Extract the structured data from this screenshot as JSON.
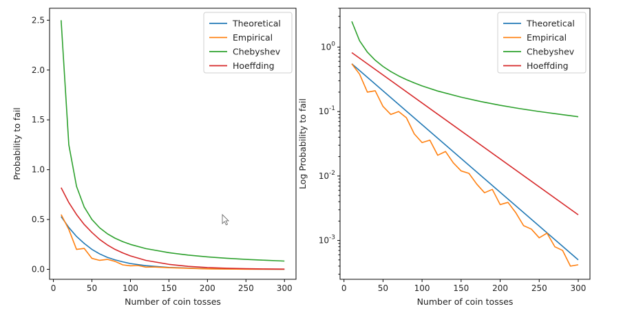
{
  "chart_data": [
    {
      "type": "line",
      "title": "",
      "xlabel": "Number of coin tosses",
      "ylabel": "Probability to fail",
      "yscale": "linear",
      "xlim": [
        -5,
        315
      ],
      "ylim": [
        -0.1,
        2.62
      ],
      "xticks": [
        0,
        50,
        100,
        150,
        200,
        250,
        300
      ],
      "xtick_labels": [
        "0",
        "50",
        "100",
        "150",
        "200",
        "250",
        "300"
      ],
      "yticks": [
        0.0,
        0.5,
        1.0,
        1.5,
        2.0,
        2.5
      ],
      "ytick_labels": [
        "0.0",
        "0.5",
        "1.0",
        "1.5",
        "2.0",
        "2.5"
      ],
      "grid": false,
      "legend_position": "top-right",
      "series": [
        {
          "name": "Theoretical",
          "color": "#1f77b4",
          "x": [
            10,
            20,
            30,
            40,
            50,
            60,
            70,
            80,
            90,
            100,
            120,
            150,
            200,
            250,
            300
          ],
          "y": [
            0.53,
            0.42,
            0.33,
            0.26,
            0.2,
            0.155,
            0.12,
            0.095,
            0.075,
            0.058,
            0.037,
            0.019,
            0.006,
            0.002,
            0.0005
          ]
        },
        {
          "name": "Empirical",
          "color": "#ff7f0e",
          "x": [
            10,
            20,
            30,
            40,
            50,
            60,
            70,
            80,
            90,
            100,
            110,
            120,
            130,
            150,
            200,
            250,
            300
          ],
          "y": [
            0.55,
            0.4,
            0.2,
            0.21,
            0.11,
            0.09,
            0.1,
            0.08,
            0.045,
            0.035,
            0.038,
            0.022,
            0.024,
            0.016,
            0.005,
            0.0015,
            0.0004
          ]
        },
        {
          "name": "Chebyshev",
          "color": "#2ca02c",
          "x": [
            10,
            20,
            30,
            40,
            50,
            60,
            70,
            80,
            90,
            100,
            120,
            150,
            175,
            200,
            225,
            250,
            275,
            300
          ],
          "y": [
            2.5,
            1.25,
            0.833,
            0.625,
            0.5,
            0.417,
            0.357,
            0.3125,
            0.278,
            0.25,
            0.208,
            0.167,
            0.143,
            0.125,
            0.111,
            0.1,
            0.091,
            0.083
          ]
        },
        {
          "name": "Hoeffding",
          "color": "#d62728",
          "x": [
            10,
            20,
            30,
            40,
            50,
            60,
            70,
            80,
            90,
            100,
            120,
            150,
            175,
            200,
            225,
            250,
            275,
            300
          ],
          "y": [
            0.82,
            0.67,
            0.55,
            0.45,
            0.37,
            0.3,
            0.245,
            0.2,
            0.165,
            0.135,
            0.09,
            0.05,
            0.03,
            0.018,
            0.011,
            0.0067,
            0.004,
            0.0025
          ]
        }
      ]
    },
    {
      "type": "line",
      "title": "",
      "xlabel": "Number of coin tosses",
      "ylabel": "Log Probability to fail",
      "yscale": "log",
      "xlim": [
        -5,
        315
      ],
      "ylim": [
        0.00025,
        4.0
      ],
      "xticks": [
        0,
        50,
        100,
        150,
        200,
        250,
        300
      ],
      "xtick_labels": [
        "0",
        "50",
        "100",
        "150",
        "200",
        "250",
        "300"
      ],
      "yticks": [
        0.001,
        0.01,
        0.1,
        1
      ],
      "ytick_labels": [
        [
          "10",
          "-3"
        ],
        [
          "10",
          "-2"
        ],
        [
          "10",
          "-1"
        ],
        [
          "10",
          "0"
        ]
      ],
      "grid": false,
      "legend_position": "top-right",
      "series": [
        {
          "name": "Theoretical",
          "color": "#1f77b4",
          "x": [
            10,
            300
          ],
          "y": [
            0.55,
            0.0005
          ]
        },
        {
          "name": "Empirical",
          "color": "#ff7f0e",
          "x": [
            10,
            20,
            30,
            40,
            50,
            60,
            70,
            80,
            90,
            100,
            110,
            120,
            130,
            140,
            150,
            160,
            170,
            180,
            190,
            200,
            210,
            220,
            230,
            240,
            250,
            260,
            270,
            280,
            290,
            300
          ],
          "y": [
            0.55,
            0.38,
            0.2,
            0.21,
            0.12,
            0.09,
            0.1,
            0.08,
            0.045,
            0.033,
            0.036,
            0.021,
            0.024,
            0.016,
            0.012,
            0.011,
            0.0075,
            0.0055,
            0.0062,
            0.0036,
            0.0039,
            0.0027,
            0.0017,
            0.0015,
            0.0011,
            0.0013,
            0.0008,
            0.0007,
            0.0004,
            0.00042
          ]
        },
        {
          "name": "Chebyshev",
          "color": "#2ca02c",
          "x": [
            10,
            20,
            30,
            40,
            50,
            60,
            70,
            80,
            90,
            100,
            120,
            150,
            175,
            200,
            225,
            250,
            275,
            300
          ],
          "y": [
            2.5,
            1.25,
            0.833,
            0.625,
            0.5,
            0.417,
            0.357,
            0.3125,
            0.278,
            0.25,
            0.208,
            0.167,
            0.143,
            0.125,
            0.111,
            0.1,
            0.091,
            0.083
          ]
        },
        {
          "name": "Hoeffding",
          "color": "#d62728",
          "x": [
            10,
            300
          ],
          "y": [
            0.82,
            0.0025
          ]
        }
      ]
    }
  ]
}
